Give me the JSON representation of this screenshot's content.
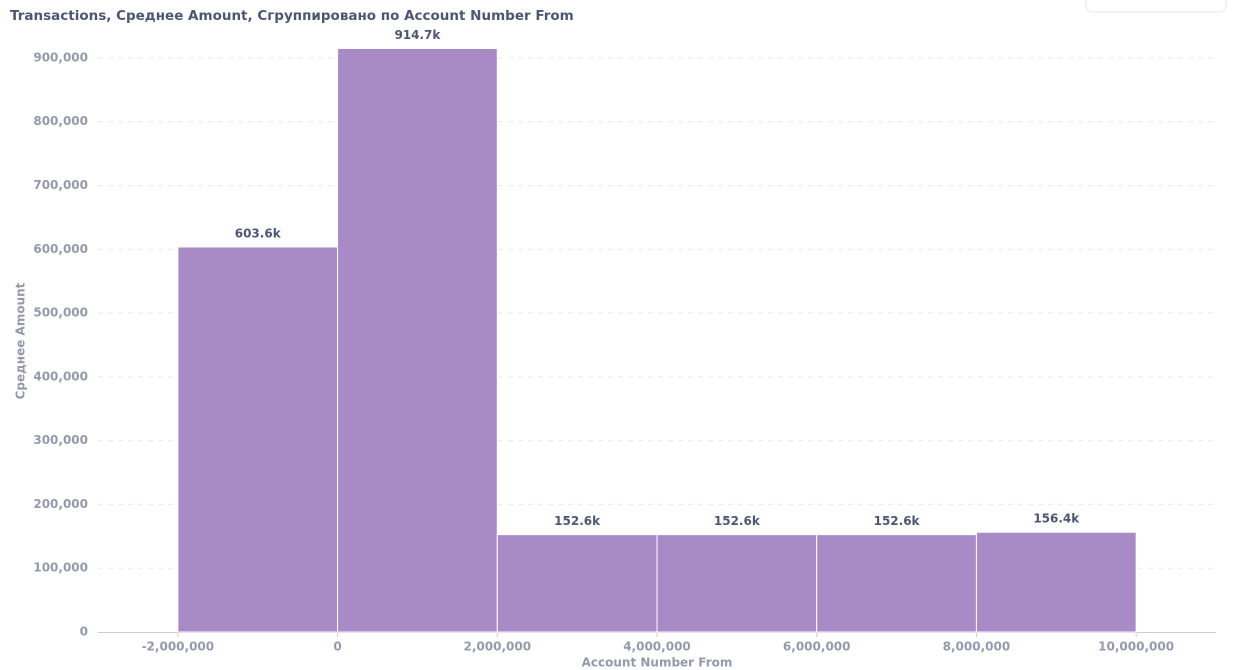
{
  "chart_data": {
    "type": "histogram",
    "title": "Transactions, Среднее Amount, Сгруппировано по Account Number From",
    "x_label": "Account Number From",
    "y_label": "Среднее Amount",
    "bins": [
      -2000000,
      0,
      2000000,
      4000000,
      6000000,
      8000000,
      10000000
    ],
    "values": [
      603600,
      914700,
      152600,
      152600,
      152600,
      156400
    ],
    "value_labels": [
      "603.6k",
      "914.7k",
      "152.6k",
      "152.6k",
      "152.6k",
      "156.4k"
    ],
    "color": "#a78ac6",
    "xlim": [
      -3000000,
      11000000
    ],
    "xticks": [
      {
        "value": -2000000,
        "label": "-2,000,000"
      },
      0,
      {
        "value": 2000000,
        "label": "2,000,000"
      },
      {
        "value": 4000000,
        "label": "4,000,000"
      },
      {
        "value": 6000000,
        "label": "6,000,000"
      },
      {
        "value": 8000000,
        "label": "8,000,000"
      },
      {
        "value": 10000000,
        "label": "10,000,000"
      }
    ],
    "ylim": [
      0,
      950000
    ],
    "yticks": [
      0,
      {
        "value": 100000,
        "label": "100,000"
      },
      {
        "value": 200000,
        "label": "200,000"
      },
      {
        "value": 300000,
        "label": "300,000"
      },
      {
        "value": 400000,
        "label": "400,000"
      },
      {
        "value": 500000,
        "label": "500,000"
      },
      {
        "value": 600000,
        "label": "600,000"
      },
      {
        "value": 700000,
        "label": "700,000"
      },
      {
        "value": 800000,
        "label": "800,000"
      },
      {
        "value": 900000,
        "label": "900,000"
      }
    ],
    "grid": true
  }
}
